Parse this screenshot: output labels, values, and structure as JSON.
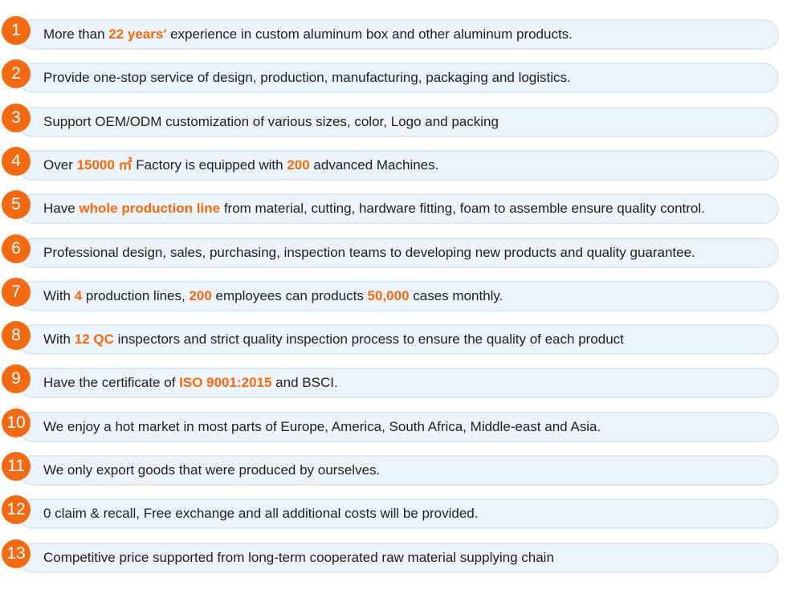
{
  "colors": {
    "accent": "#f36a12",
    "row_background": "#ecf3fa",
    "row_border": "#dce8f3",
    "text": "#1f1f1f"
  },
  "items": [
    {
      "number": "1",
      "segments": [
        {
          "t": "More than ",
          "h": false
        },
        {
          "t": "22 years'",
          "h": true
        },
        {
          "t": " experience in custom aluminum box and other aluminum products.",
          "h": false
        }
      ]
    },
    {
      "number": "2",
      "segments": [
        {
          "t": "Provide one-stop service of design, production, manufacturing, packaging and logistics.",
          "h": false
        }
      ]
    },
    {
      "number": "3",
      "segments": [
        {
          "t": "Support OEM/ODM customization of various sizes, color, Logo and packing",
          "h": false
        }
      ]
    },
    {
      "number": "4",
      "segments": [
        {
          "t": "Over ",
          "h": false
        },
        {
          "t": "15000 ㎡",
          "h": true
        },
        {
          "t": " Factory is equipped with ",
          "h": false
        },
        {
          "t": "200",
          "h": true
        },
        {
          "t": " advanced Machines.",
          "h": false
        }
      ]
    },
    {
      "number": "5",
      "segments": [
        {
          "t": "Have ",
          "h": false
        },
        {
          "t": "whole production line",
          "h": true
        },
        {
          "t": " from material, cutting, hardware fitting, foam to assemble ensure quality control.",
          "h": false
        }
      ]
    },
    {
      "number": "6",
      "segments": [
        {
          "t": "Professional design, sales, purchasing, inspection teams to developing new products and quality guarantee.",
          "h": false
        }
      ]
    },
    {
      "number": "7",
      "segments": [
        {
          "t": "With ",
          "h": false
        },
        {
          "t": "4",
          "h": true
        },
        {
          "t": " production lines, ",
          "h": false
        },
        {
          "t": "200",
          "h": true
        },
        {
          "t": " employees can products ",
          "h": false
        },
        {
          "t": "50,000",
          "h": true
        },
        {
          "t": " cases monthly.",
          "h": false
        }
      ]
    },
    {
      "number": "8",
      "segments": [
        {
          "t": "With ",
          "h": false
        },
        {
          "t": "12 QC",
          "h": true
        },
        {
          "t": " inspectors and strict quality inspection process to ensure the quality of each product",
          "h": false
        }
      ]
    },
    {
      "number": "9",
      "segments": [
        {
          "t": "Have the certificate of ",
          "h": false
        },
        {
          "t": "ISO 9001:2015",
          "h": true
        },
        {
          "t": " and BSCI.",
          "h": false
        }
      ]
    },
    {
      "number": "10",
      "segments": [
        {
          "t": "We enjoy a hot market in most parts of Europe, America, South Africa, Middle-east and Asia.",
          "h": false
        }
      ]
    },
    {
      "number": "11",
      "segments": [
        {
          "t": "We only export goods that were produced by ourselves.",
          "h": false
        }
      ]
    },
    {
      "number": "12",
      "segments": [
        {
          "t": "0 claim & recall, Free exchange and all additional costs will be provided.",
          "h": false
        }
      ]
    },
    {
      "number": "13",
      "segments": [
        {
          "t": "Competitive price supported from long-term cooperated raw material supplying chain",
          "h": false
        }
      ]
    }
  ]
}
